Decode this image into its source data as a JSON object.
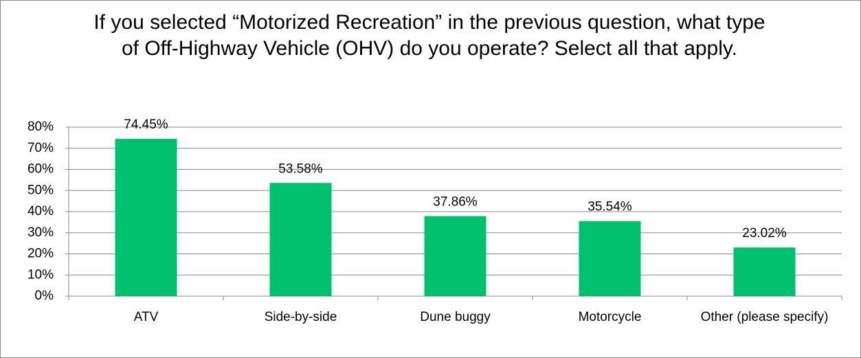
{
  "chart_data": {
    "type": "bar",
    "title": "If you selected “Motorized Recreation” in the previous question, what type of Off-Highway Vehicle (OHV) do you operate? Select all that apply.",
    "categories": [
      "ATV",
      "Side-by-side",
      "Dune buggy",
      "Motorcycle",
      "Other (please specify)"
    ],
    "values": [
      74.45,
      53.58,
      37.86,
      35.54,
      23.02
    ],
    "value_labels": [
      "74.45%",
      "53.58%",
      "37.86%",
      "35.54%",
      "23.02%"
    ],
    "color": "#00bf6f",
    "ylim": [
      0,
      80
    ],
    "yticks": [
      {
        "value": 0,
        "label": "0%"
      },
      {
        "value": 10,
        "label": "10%"
      },
      {
        "value": 20,
        "label": "20%"
      },
      {
        "value": 30,
        "label": "30%"
      },
      {
        "value": 40,
        "label": "40%"
      },
      {
        "value": 50,
        "label": "50%"
      },
      {
        "value": 60,
        "label": "60%"
      },
      {
        "value": 70,
        "label": "70%"
      },
      {
        "value": 80,
        "label": "80%"
      }
    ],
    "grid": true
  }
}
